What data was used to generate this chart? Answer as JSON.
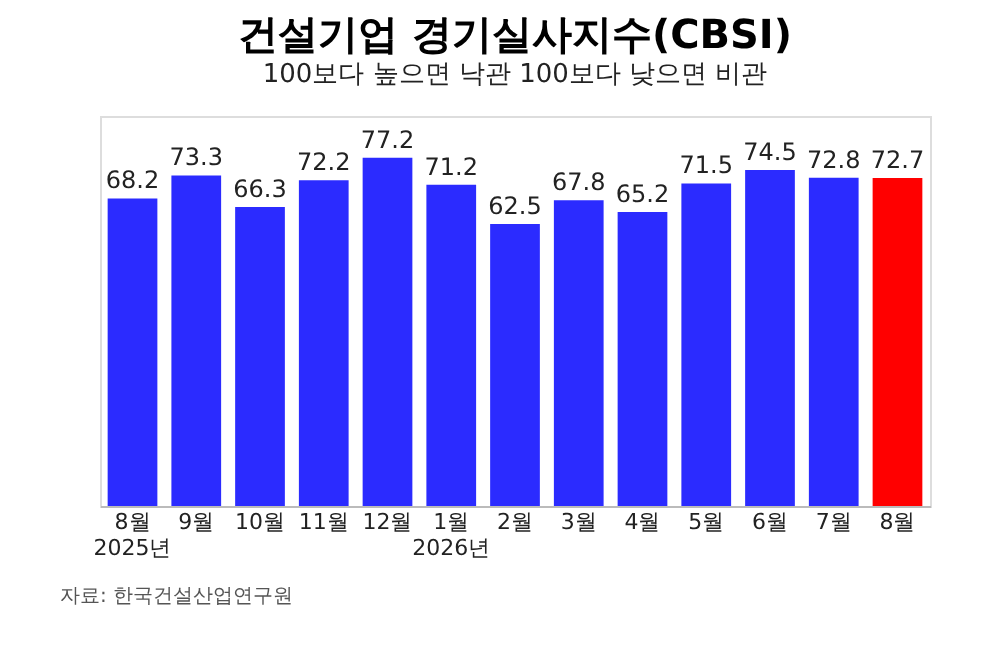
{
  "chart_data": {
    "type": "bar",
    "title": "건설기업 경기실사지수(CBSI)",
    "subtitle": "100보다 높으면 낙관 100보다 낮으면 비관",
    "categories": [
      "8월\n2025년",
      "9월",
      "10월",
      "11월",
      "12월",
      "1월\n2026년",
      "2월",
      "3월",
      "4월",
      "5월",
      "6월",
      "7월",
      "8월"
    ],
    "values": [
      68.2,
      73.3,
      66.3,
      72.2,
      77.2,
      71.2,
      62.5,
      67.8,
      65.2,
      71.5,
      74.5,
      72.8,
      72.7
    ],
    "colors": [
      "#2b2bff",
      "#2b2bff",
      "#2b2bff",
      "#2b2bff",
      "#2b2bff",
      "#2b2bff",
      "#2b2bff",
      "#2b2bff",
      "#2b2bff",
      "#2b2bff",
      "#2b2bff",
      "#2b2bff",
      "#ff0000"
    ],
    "data_labels": true,
    "grid": false,
    "tick_labels": "x",
    "annotations": [
      "자료: 한국건설산업연구원"
    ]
  }
}
